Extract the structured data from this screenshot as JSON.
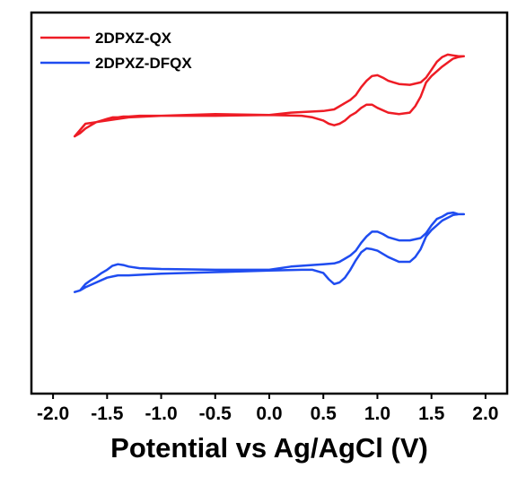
{
  "chart_data": {
    "type": "line",
    "title": "",
    "xlabel": "Potential vs Ag/AgCl (V)",
    "ylabel": "",
    "xlim": [
      -2.2,
      2.2
    ],
    "xticks": [
      "-2.0",
      "-1.5",
      "-1.0",
      "-0.5",
      "0.0",
      "0.5",
      "1.0",
      "1.5",
      "2.0"
    ],
    "grid": false,
    "legend_position": "top-left",
    "series": [
      {
        "name": "2DPXZ-QX",
        "color": "#ee1c25",
        "x": [
          -1.8,
          -1.75,
          -1.7,
          -1.65,
          -1.6,
          -1.55,
          -1.5,
          -1.45,
          -1.4,
          -1.35,
          -1.3,
          -1.2,
          -1.0,
          -0.5,
          0.0,
          0.2,
          0.5,
          0.6,
          0.65,
          0.7,
          0.75,
          0.8,
          0.85,
          0.9,
          0.95,
          1.0,
          1.05,
          1.1,
          1.15,
          1.2,
          1.3,
          1.4,
          1.45,
          1.5,
          1.55,
          1.6,
          1.65,
          1.7,
          1.75,
          1.8,
          1.75,
          1.7,
          1.6,
          1.5,
          1.45,
          1.4,
          1.35,
          1.3,
          1.2,
          1.1,
          1.0,
          0.95,
          0.9,
          0.85,
          0.8,
          0.75,
          0.7,
          0.65,
          0.6,
          0.55,
          0.5,
          0.4,
          0.3,
          0.0,
          -0.5,
          -1.0,
          -1.3,
          -1.4,
          -1.5,
          -1.6,
          -1.7,
          -1.75,
          -1.8
        ],
        "y": [
          -4.8,
          -4.6,
          -4.3,
          -4.1,
          -3.9,
          -3.8,
          -3.7,
          -3.6,
          -3.6,
          -3.55,
          -3.55,
          -3.5,
          -3.5,
          -3.5,
          -3.45,
          -3.3,
          -3.2,
          -3.1,
          -2.9,
          -2.7,
          -2.5,
          -2.2,
          -1.7,
          -1.3,
          -1.0,
          -0.95,
          -1.1,
          -1.3,
          -1.4,
          -1.5,
          -1.55,
          -1.4,
          -1.1,
          -0.6,
          -0.1,
          0.2,
          0.35,
          0.3,
          0.25,
          0.25,
          0.2,
          0.1,
          -0.4,
          -1.0,
          -1.4,
          -2.3,
          -2.9,
          -3.3,
          -3.4,
          -3.3,
          -3.0,
          -2.8,
          -2.8,
          -3.0,
          -3.3,
          -3.5,
          -3.8,
          -4.0,
          -4.1,
          -4.0,
          -3.8,
          -3.6,
          -3.5,
          -3.45,
          -3.4,
          -3.5,
          -3.6,
          -3.7,
          -3.8,
          -3.9,
          -4.0,
          -4.4,
          -4.8
        ]
      },
      {
        "name": "2DPXZ-DFQX",
        "color": "#1f4cf0",
        "x": [
          -1.8,
          -1.75,
          -1.7,
          -1.65,
          -1.6,
          -1.55,
          -1.5,
          -1.45,
          -1.4,
          -1.35,
          -1.3,
          -1.2,
          -1.0,
          -0.5,
          0.0,
          0.2,
          0.5,
          0.6,
          0.65,
          0.7,
          0.75,
          0.8,
          0.85,
          0.9,
          0.95,
          1.0,
          1.05,
          1.1,
          1.15,
          1.2,
          1.3,
          1.4,
          1.45,
          1.5,
          1.55,
          1.6,
          1.65,
          1.7,
          1.75,
          1.8,
          1.75,
          1.7,
          1.6,
          1.5,
          1.45,
          1.4,
          1.35,
          1.3,
          1.2,
          1.1,
          1.0,
          0.95,
          0.9,
          0.85,
          0.8,
          0.75,
          0.7,
          0.65,
          0.6,
          0.55,
          0.5,
          0.4,
          0.3,
          0.0,
          -0.5,
          -1.0,
          -1.3,
          -1.4,
          -1.5,
          -1.6,
          -1.7,
          -1.75,
          -1.8
        ],
        "y": [
          -14.6,
          -14.5,
          -14.1,
          -13.85,
          -13.65,
          -13.4,
          -13.2,
          -12.95,
          -12.85,
          -12.9,
          -13.0,
          -13.1,
          -13.15,
          -13.2,
          -13.2,
          -13.0,
          -12.85,
          -12.8,
          -12.7,
          -12.5,
          -12.3,
          -12.0,
          -11.5,
          -11.1,
          -10.8,
          -10.8,
          -10.95,
          -11.15,
          -11.25,
          -11.35,
          -11.35,
          -11.2,
          -10.9,
          -10.4,
          -10.0,
          -9.85,
          -9.65,
          -9.6,
          -9.7,
          -9.7,
          -9.7,
          -9.75,
          -10.1,
          -10.7,
          -11.1,
          -11.9,
          -12.4,
          -12.7,
          -12.7,
          -12.4,
          -12.0,
          -11.9,
          -11.85,
          -12.1,
          -12.6,
          -13.2,
          -13.7,
          -14.0,
          -14.1,
          -13.8,
          -13.4,
          -13.2,
          -13.2,
          -13.25,
          -13.35,
          -13.45,
          -13.55,
          -13.55,
          -13.7,
          -14.0,
          -14.3,
          -14.5,
          -14.6
        ]
      }
    ]
  }
}
